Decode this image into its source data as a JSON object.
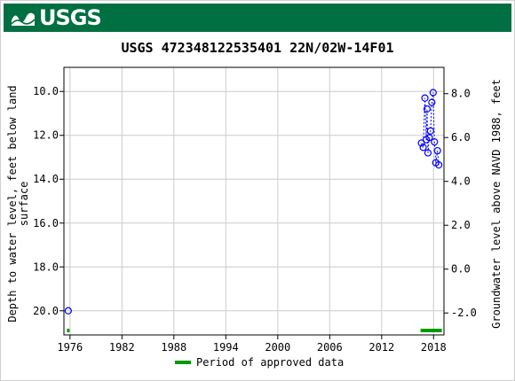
{
  "header": {
    "logo_text": "USGS"
  },
  "chart_data": {
    "type": "scatter",
    "title": "USGS 472348122535401 22N/02W-14F01",
    "ylabel_left": [
      "Depth to water level, feet below land",
      "surface"
    ],
    "ylabel_right": "Groundwater level above NAVD 1988, feet",
    "x_ticks": [
      "1976",
      "1982",
      "1988",
      "1994",
      "2000",
      "2006",
      "2012",
      "2018"
    ],
    "xlim": [
      1975.3,
      2019.2
    ],
    "ylim_left": [
      21.1,
      8.9
    ],
    "y_ticks_left": [
      "10.0",
      "12.0",
      "14.0",
      "16.0",
      "18.0",
      "20.0"
    ],
    "y_ticks_right": [
      "8.0",
      "6.0",
      "4.0",
      "2.0",
      "0.0",
      "-2.0"
    ],
    "right_axis_offset": 18.1,
    "grid": true,
    "legend": {
      "label": "Period of approved data",
      "placement": "bottom"
    },
    "colors": {
      "points": "#0000ff",
      "approved": "#009900",
      "grid": "#cccccc"
    },
    "series": [
      {
        "points": [
          [
            1975.8,
            20.0
          ],
          [
            2016.6,
            12.35
          ],
          [
            2016.8,
            12.55
          ],
          [
            2017.0,
            10.3
          ],
          [
            2017.15,
            12.2
          ],
          [
            2017.25,
            10.8
          ],
          [
            2017.35,
            12.8
          ],
          [
            2017.5,
            12.1
          ],
          [
            2017.65,
            11.8
          ],
          [
            2017.8,
            10.5
          ],
          [
            2017.95,
            10.05
          ],
          [
            2018.1,
            12.3
          ],
          [
            2018.25,
            13.25
          ],
          [
            2018.45,
            12.7
          ],
          [
            2018.6,
            13.35
          ]
        ]
      }
    ],
    "approved_periods": [
      [
        1975.65,
        1975.95
      ],
      [
        2016.5,
        2018.95
      ]
    ]
  }
}
